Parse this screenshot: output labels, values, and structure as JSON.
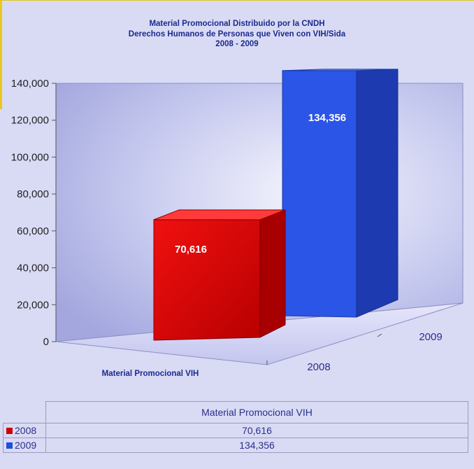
{
  "chart_data": {
    "type": "bar",
    "title": [
      "Material Promocional Distribuido por la CNDH",
      "Derechos Humanos de Personas que Viven con VIH/Sida",
      "2008 - 2009"
    ],
    "categories": [
      "Material Promocional VIH"
    ],
    "series": [
      {
        "name": "2008",
        "values": [
          70616
        ],
        "color": "#dd0d0d",
        "value_label": "70,616"
      },
      {
        "name": "2009",
        "values": [
          134356
        ],
        "color": "#2f5cf0",
        "value_label": "134,356"
      }
    ],
    "ylim": [
      0,
      140000
    ],
    "yticks": [
      0,
      20000,
      40000,
      60000,
      80000,
      100000,
      120000,
      140000
    ],
    "ytick_labels": [
      "0",
      "20,000",
      "40,000",
      "60,000",
      "80,000",
      "100,000",
      "120,000",
      "140,000"
    ],
    "grid": false,
    "view": "3d"
  },
  "table": {
    "header": "Material Promocional VIH",
    "rows": [
      {
        "name": "2008",
        "value": "70,616",
        "color": "#cc0000"
      },
      {
        "name": "2009",
        "value": "134,356",
        "color": "#1f4ee0"
      }
    ]
  }
}
